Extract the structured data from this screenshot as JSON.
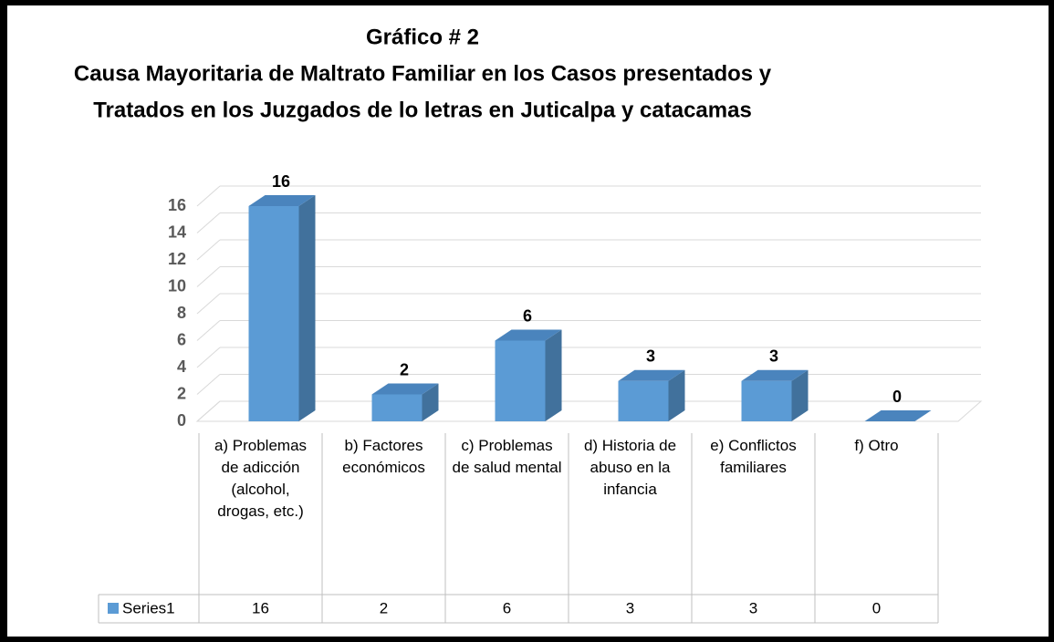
{
  "chart_data": {
    "type": "bar3d",
    "title": [
      "Gráfico # 2",
      "Causa Mayoritaria de Maltrato Familiar en los Casos presentados y",
      "Tratados en los Juzgados de lo letras en Juticalpa y catacamas"
    ],
    "categories": [
      "a) Problemas de adicción (alcohol, drogas, etc.)",
      "b) Factores económicos",
      "c) Problemas de salud mental",
      "d) Historia de abuso en la infancia",
      "e) Conflictos familiares",
      "f)      Otro"
    ],
    "series": [
      {
        "name": "Series1",
        "color": "#5b9bd5",
        "values": [
          16,
          2,
          6,
          3,
          3,
          0
        ]
      }
    ],
    "ylim": [
      0,
      18
    ],
    "yticks": [
      0,
      2,
      4,
      6,
      8,
      10,
      12,
      14,
      16
    ],
    "grid": true,
    "data_table": true
  }
}
